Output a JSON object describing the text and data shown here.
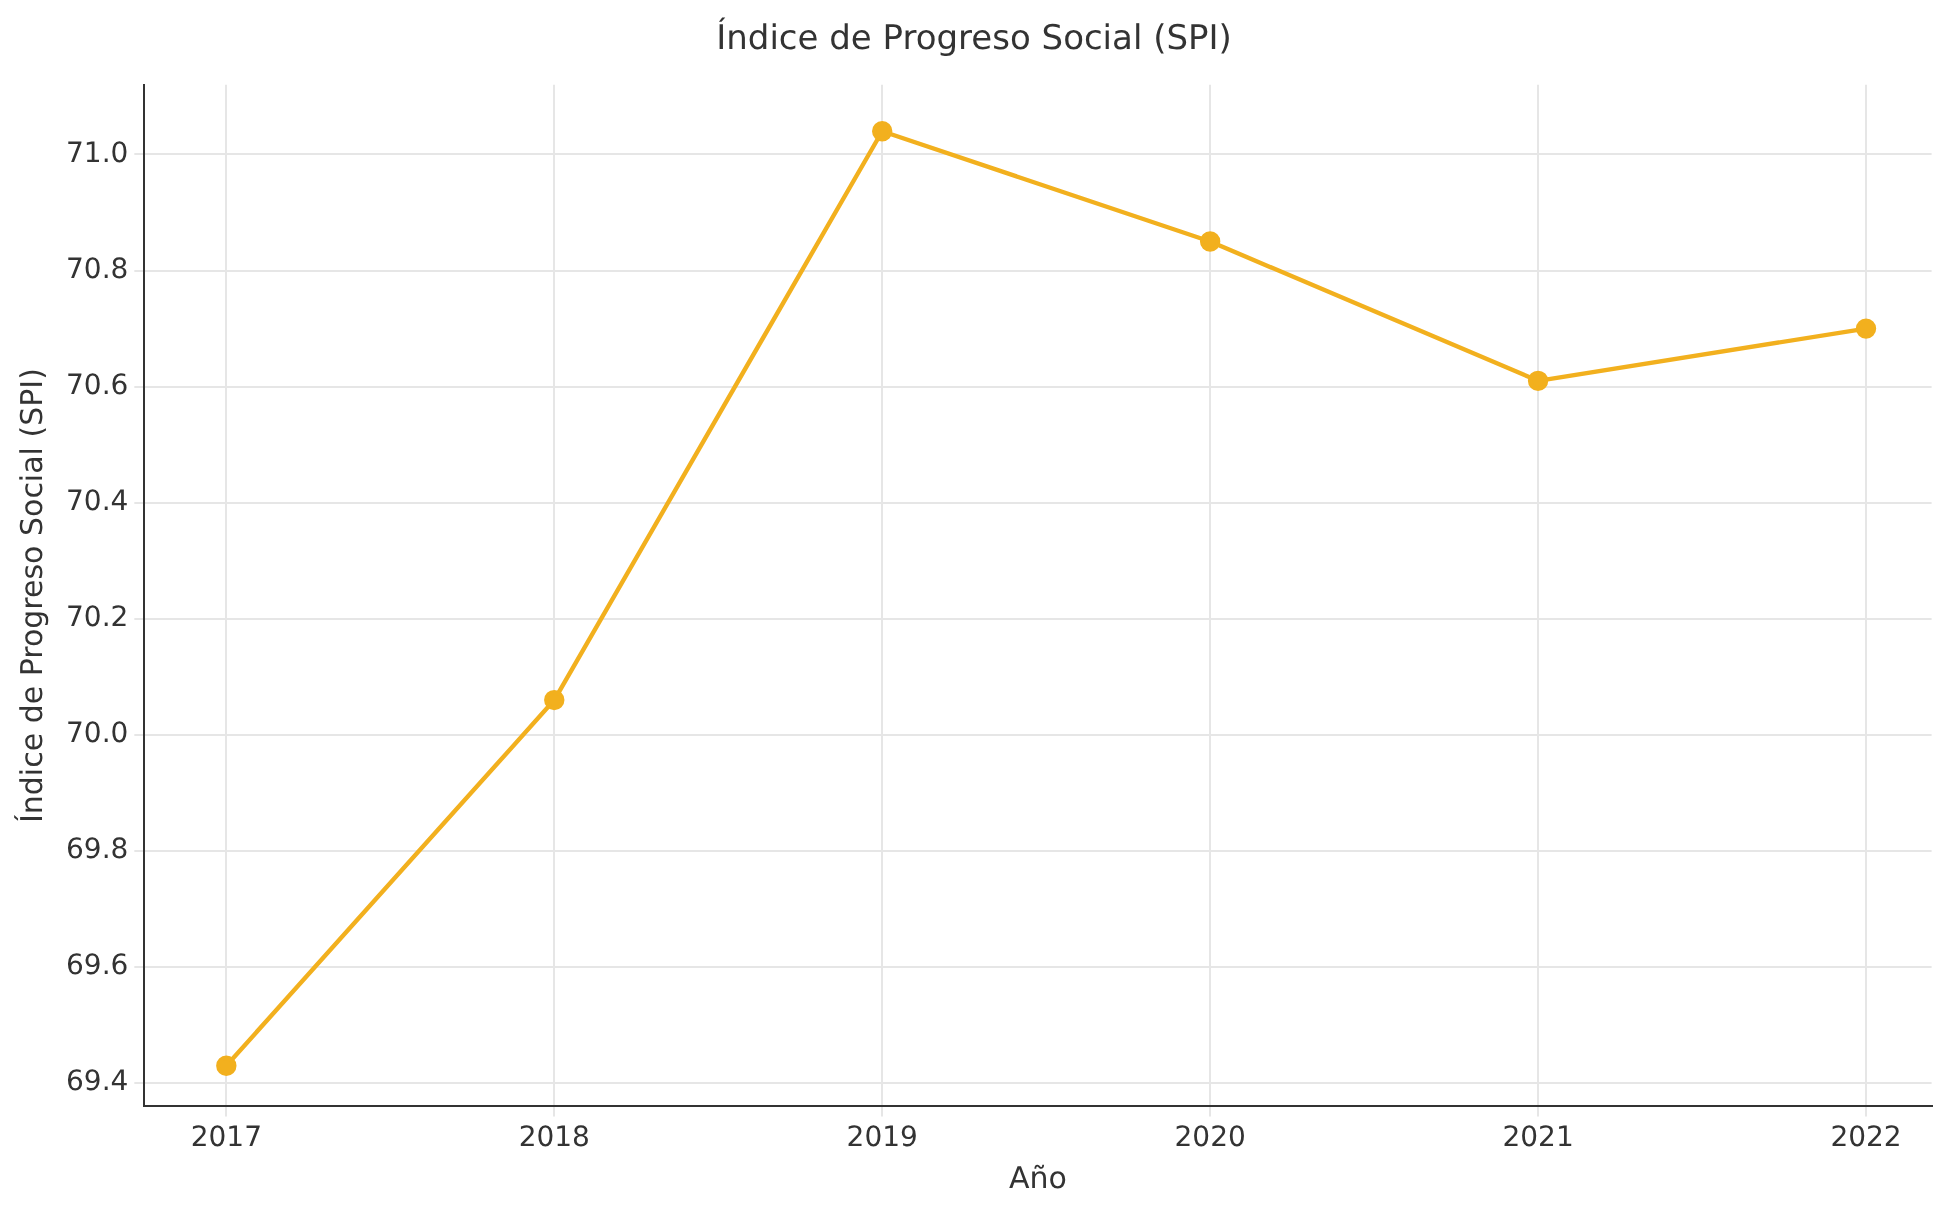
{
  "chart_data": {
    "type": "line",
    "title": "Índice de Progreso Social (SPI)",
    "xlabel": "Año",
    "ylabel": "Índice de Progreso Social (SPI)",
    "x": [
      2017,
      2018,
      2019,
      2020,
      2021,
      2022
    ],
    "series": [
      {
        "color": "#f2b01e",
        "values": [
          69.43,
          70.06,
          71.04,
          70.85,
          70.61,
          70.7
        ]
      }
    ],
    "xlim": [
      2016.75,
      2022.2
    ],
    "xticks": [
      2017,
      2018,
      2019,
      2020,
      2021,
      2022
    ],
    "ylim": [
      69.36,
      71.12
    ],
    "yticks": [
      69.4,
      69.6,
      69.8,
      {
        "value": 70,
        "label": "70.0"
      },
      70.2,
      70.4,
      70.6,
      70.8,
      {
        "value": 71,
        "label": "71.0"
      }
    ],
    "grid": true,
    "marker": "circle",
    "line_style": "solid",
    "legend": false
  }
}
